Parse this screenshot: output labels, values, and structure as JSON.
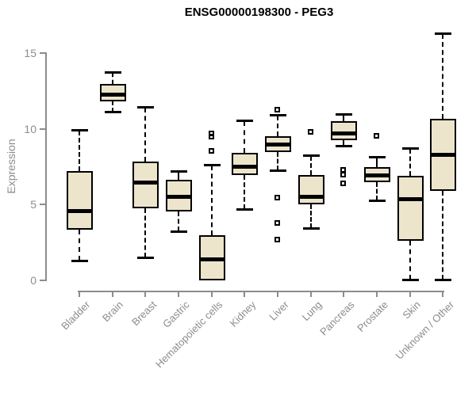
{
  "title": "ENSG00000198300 - PEG3",
  "colors": {
    "box_fill": "#ece5cc",
    "box_stroke": "#000000",
    "median": "#000000",
    "whisker": "#000000",
    "outlier": "#000000",
    "axis": "#8c8c8c",
    "tick_label": "#8c8c8c",
    "title": "#000000",
    "background": "#ffffff"
  },
  "chart_data": {
    "type": "boxplot",
    "title": "ENSG00000198300 - PEG3",
    "xlabel": "",
    "ylabel": "Expression",
    "yticks": [
      0,
      5,
      10,
      15
    ],
    "ylim": [
      0,
      16.3
    ],
    "grid": false,
    "legend": false,
    "categories": [
      "Bladder",
      "Brain",
      "Breast",
      "Gastric",
      "Hematopoietic cells",
      "Kidney",
      "Liver",
      "Lung",
      "Pancreas",
      "Prostate",
      "Skin",
      "Unknown / Other"
    ],
    "series": [
      {
        "label": "Bladder",
        "low": 1.3,
        "q1": 3.35,
        "median": 4.6,
        "q3": 7.2,
        "high": 9.9,
        "outliers": []
      },
      {
        "label": "Brain",
        "low": 11.15,
        "q1": 11.85,
        "median": 12.3,
        "q3": 13.0,
        "high": 13.7,
        "outliers": []
      },
      {
        "label": "Breast",
        "low": 1.5,
        "q1": 4.75,
        "median": 6.5,
        "q3": 7.85,
        "high": 11.4,
        "outliers": []
      },
      {
        "label": "Gastric",
        "low": 3.25,
        "q1": 4.55,
        "median": 5.55,
        "q3": 6.65,
        "high": 7.15,
        "outliers": []
      },
      {
        "label": "Hematopoietic cells",
        "low": 0.0,
        "q1": 0.0,
        "median": 1.4,
        "q3": 3.0,
        "high": 7.6,
        "outliers": [
          9.7,
          9.45,
          8.55
        ]
      },
      {
        "label": "Kidney",
        "low": 4.7,
        "q1": 6.95,
        "median": 7.55,
        "q3": 8.4,
        "high": 10.5,
        "outliers": []
      },
      {
        "label": "Liver",
        "low": 7.3,
        "q1": 8.5,
        "median": 9.0,
        "q3": 9.5,
        "high": 10.9,
        "outliers": [
          11.25,
          5.45,
          3.75,
          2.65
        ]
      },
      {
        "label": "Lung",
        "low": 3.45,
        "q1": 5.0,
        "median": 5.55,
        "q3": 6.95,
        "high": 8.2,
        "outliers": [
          9.8
        ]
      },
      {
        "label": "Pancreas",
        "low": 8.9,
        "q1": 9.25,
        "median": 9.75,
        "q3": 10.5,
        "high": 10.95,
        "outliers": [
          7.25,
          6.95,
          6.4
        ]
      },
      {
        "label": "Prostate",
        "low": 5.3,
        "q1": 6.5,
        "median": 6.95,
        "q3": 7.5,
        "high": 8.1,
        "outliers": [
          9.55
        ]
      },
      {
        "label": "Skin",
        "low": 0.05,
        "q1": 2.6,
        "median": 5.4,
        "q3": 6.9,
        "high": 8.7,
        "outliers": []
      },
      {
        "label": "Unknown / Other",
        "low": 0.05,
        "q1": 5.9,
        "median": 8.3,
        "q3": 10.7,
        "high": 16.3,
        "outliers": []
      }
    ]
  }
}
